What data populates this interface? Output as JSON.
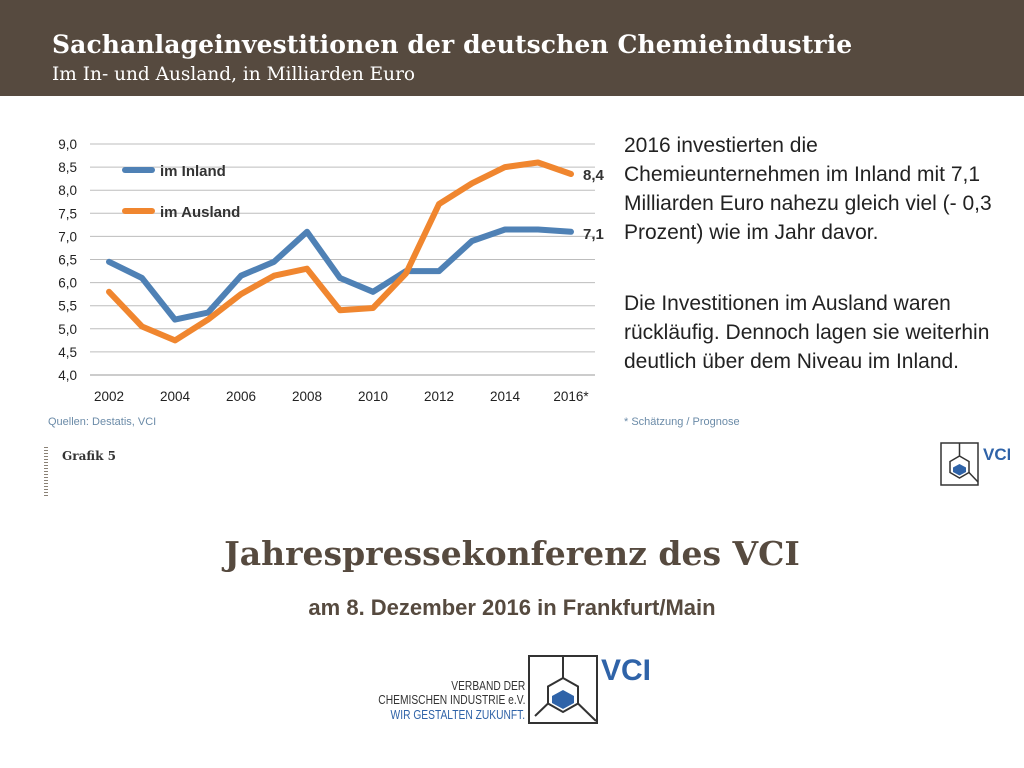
{
  "header": {
    "title": "Sachanlageinvestitionen der deutschen Chemieindustrie",
    "subtitle": "Im In- und Ausland, in Milliarden Euro"
  },
  "chart_data": {
    "type": "line",
    "x": [
      "2002",
      "2003",
      "2004",
      "2005",
      "2006",
      "2007",
      "2008",
      "2009",
      "2010",
      "2011",
      "2012",
      "2013",
      "2014",
      "2015",
      "2016*"
    ],
    "x_tick_labels": [
      "2002",
      "2004",
      "2006",
      "2008",
      "2010",
      "2012",
      "2014",
      "2016*"
    ],
    "y_tick_labels": [
      "4,0",
      "4,5",
      "5,0",
      "5,5",
      "6,0",
      "6,5",
      "7,0",
      "7,5",
      "8,0",
      "8,5",
      "9,0"
    ],
    "ylim": [
      4.0,
      9.0
    ],
    "grid": true,
    "legend_position": "top-left",
    "series": [
      {
        "name": "im Inland",
        "color": "#4f81b5",
        "values": [
          6.45,
          6.1,
          5.2,
          5.35,
          6.15,
          6.45,
          7.1,
          6.1,
          5.8,
          6.25,
          6.25,
          6.9,
          7.15,
          7.15,
          7.1
        ],
        "end_label": "7,1"
      },
      {
        "name": "im Ausland",
        "color": "#f0862f",
        "values": [
          5.8,
          5.05,
          4.75,
          5.2,
          5.75,
          6.15,
          6.3,
          5.4,
          5.45,
          6.2,
          7.7,
          8.15,
          8.5,
          8.6,
          8.35
        ],
        "end_label": "8,4"
      }
    ],
    "source": "Quellen: Destatis, VCI"
  },
  "text": {
    "para1": "2016 investierten die Chemieunternehmen im Inland mit 7,1 Milliarden Euro nahezu gleich viel (- 0,3 Prozent) wie im Jahr davor.",
    "para2": "Die Investitionen im Ausland waren rückläufig. Dennoch lagen sie weiterhin deutlich über dem Niveau im Inland.",
    "note": "* Schätzung / Prognose"
  },
  "footer": {
    "grafik_label": "Grafik 5",
    "conference_title": "Jahrespressekonferenz des VCI",
    "conference_subtitle": "am 8. Dezember 2016 in Frankfurt/Main",
    "logo_text": "VCI",
    "association_line1": "VERBAND DER",
    "association_line2": "CHEMISCHEN INDUSTRIE e.V.",
    "slogan": "WIR GESTALTEN ZUKUNFT.",
    "logo_color": "#2f63a8"
  }
}
